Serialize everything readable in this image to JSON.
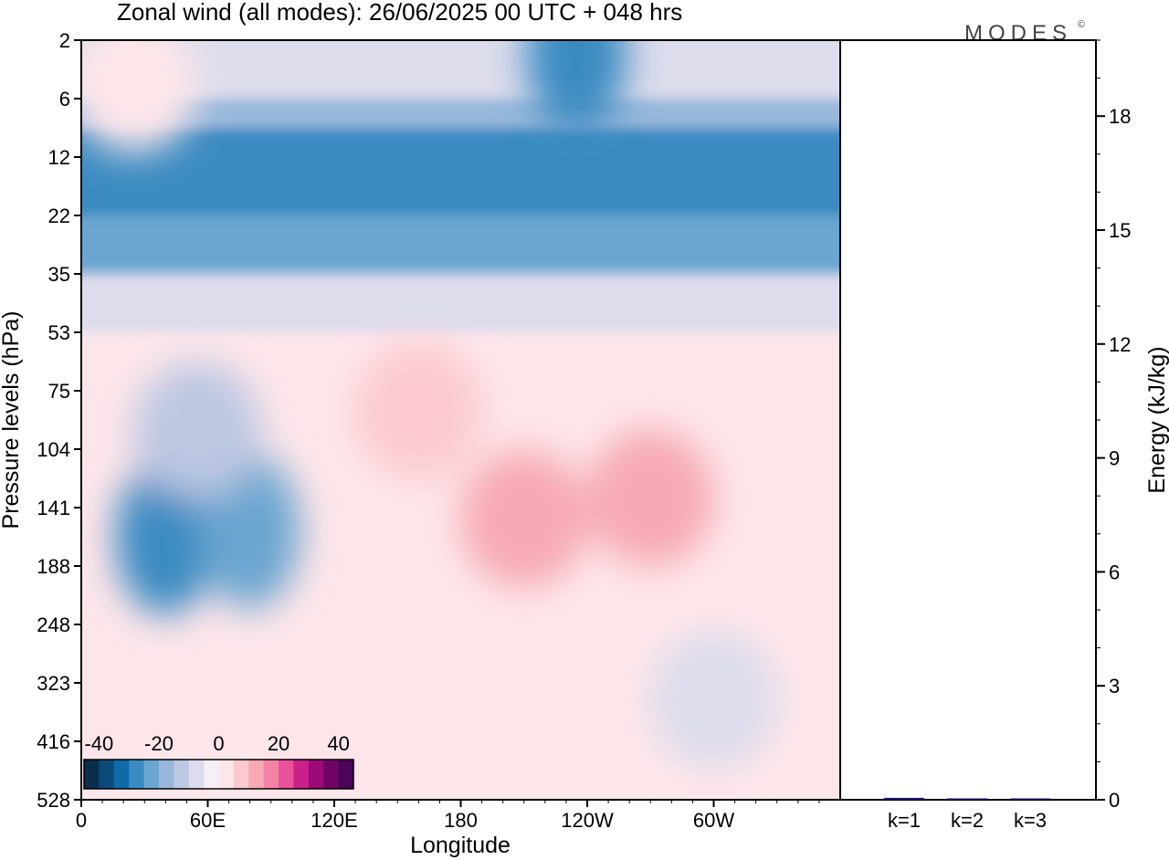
{
  "figure": {
    "title": "Zonal wind (all modes):  26/06/2025  00 UTC  + 048 hrs",
    "brand": "MODES",
    "brand_mark": "©"
  },
  "chart_data": [
    {
      "type": "heatmap",
      "title": "Zonal wind (all modes):  26/06/2025  00 UTC  + 048 hrs",
      "xlabel": "Longitude",
      "ylabel": "Pressure levels (hPa)",
      "x_ticks": [
        "0",
        "60E",
        "120E",
        "180",
        "120W",
        "60W"
      ],
      "x_tick_values": [
        0,
        60,
        120,
        180,
        240,
        300
      ],
      "xlim": [
        0,
        360
      ],
      "y_ticks": [
        2,
        6,
        12,
        22,
        35,
        53,
        75,
        104,
        141,
        188,
        248,
        323,
        416,
        528
      ],
      "ylim": [
        2,
        528
      ],
      "colorbar": {
        "tick_labels": [
          "-40",
          "-20",
          "0",
          "20",
          "40"
        ],
        "tick_values": [
          -40,
          -20,
          0,
          20,
          40
        ],
        "range": [
          -45,
          45
        ],
        "colors": [
          "#0b2e4d",
          "#0d4a7a",
          "#0f6aa6",
          "#3a8bc2",
          "#6aa6d0",
          "#98b8db",
          "#bcc7e2",
          "#dcdcec",
          "#f5f0f7",
          "#fde6ea",
          "#fbc9cf",
          "#f7a9b4",
          "#f383a4",
          "#e9529a",
          "#c92189",
          "#9c0a77",
          "#6e0466",
          "#4a045a"
        ],
        "position": "bottom-left"
      },
      "bands": [
        {
          "p_range": [
            2,
            6
          ],
          "value": -10
        },
        {
          "p_range": [
            6,
            9
          ],
          "value": -18
        },
        {
          "p_range": [
            9,
            22
          ],
          "value": -30
        },
        {
          "p_range": [
            22,
            35
          ],
          "value": -22
        },
        {
          "p_range": [
            35,
            53
          ],
          "value": -10
        },
        {
          "p_range": [
            53,
            528
          ],
          "value": 0
        }
      ],
      "features": [
        {
          "lon": 40,
          "p": 165,
          "value": -30
        },
        {
          "lon": 80,
          "p": 160,
          "value": -25
        },
        {
          "lon": 210,
          "p": 150,
          "value": 12
        },
        {
          "lon": 270,
          "p": 135,
          "value": 10
        },
        {
          "lon": 160,
          "p": 85,
          "value": 8
        },
        {
          "lon": 300,
          "p": 350,
          "value": -6
        },
        {
          "lon": 25,
          "p": 5,
          "value": 3
        },
        {
          "lon": 235,
          "p": 3,
          "value": -28
        },
        {
          "lon": 55,
          "p": 95,
          "value": -15
        }
      ]
    },
    {
      "type": "bar",
      "ylabel": "Energy (kJ/kg)",
      "categories": [
        "k=1",
        "k=2",
        "k=3"
      ],
      "values": [
        0.05,
        0.02,
        0.01
      ],
      "ylim": [
        0,
        20
      ],
      "y_ticks": [
        0,
        3,
        6,
        9,
        12,
        15,
        18
      ],
      "bar_color": "#1a1a6e",
      "y_axis_side": "right"
    }
  ]
}
